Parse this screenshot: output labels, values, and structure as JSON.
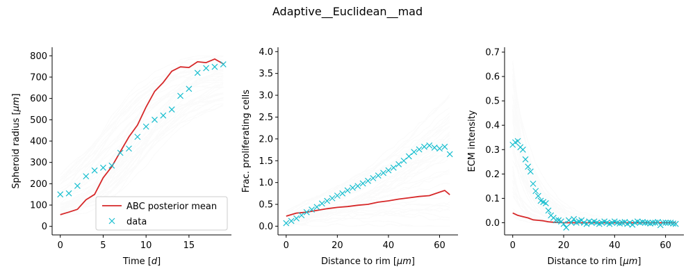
{
  "suptitle": "Adaptive__Euclidean__mad",
  "colors": {
    "mean": "#d62728",
    "data": "#17becf",
    "background": "#cccccc",
    "spine": "#000000"
  },
  "chart_data": [
    {
      "type": "line",
      "xlabel": "Time [$d$]",
      "ylabel": "Spheroid radius [$\\mu m$]",
      "xlim": [
        -0.95,
        19.95
      ],
      "ylim": [
        -40,
        840
      ],
      "xticks": [
        0,
        5,
        10,
        15
      ],
      "yticks": [
        0,
        100,
        200,
        300,
        400,
        500,
        600,
        700,
        800
      ],
      "legend": {
        "placement": "lower-right",
        "entries": [
          "ABC posterior mean",
          "data"
        ]
      },
      "series": [
        {
          "name": "ABC posterior mean",
          "style": "line",
          "x": [
            0,
            1,
            2,
            3,
            4,
            5,
            6,
            7,
            8,
            9,
            10,
            11,
            12,
            13,
            14,
            15,
            16,
            17,
            18,
            19
          ],
          "y": [
            55,
            67,
            80,
            125,
            150,
            228,
            280,
            350,
            420,
            475,
            560,
            633,
            675,
            728,
            748,
            745,
            772,
            768,
            785,
            762
          ]
        },
        {
          "name": "data",
          "style": "marker-x",
          "x": [
            0,
            1,
            2,
            3,
            4,
            5,
            6,
            7,
            8,
            9,
            10,
            11,
            12,
            13,
            14,
            15,
            16,
            17,
            18,
            19
          ],
          "y": [
            150,
            155,
            190,
            235,
            262,
            275,
            285,
            345,
            365,
            420,
            468,
            500,
            520,
            548,
            612,
            645,
            720,
            742,
            748,
            760
          ]
        }
      ]
    },
    {
      "type": "line",
      "xlabel": "Distance to rim [$\\mu m$]",
      "ylabel": "Frac. proliferating cells",
      "xlim": [
        -3.2,
        67.2
      ],
      "ylim": [
        -0.2,
        4.1
      ],
      "xticks": [
        0,
        20,
        40,
        60
      ],
      "yticks": [
        0.0,
        0.5,
        1.0,
        1.5,
        2.0,
        2.5,
        3.0,
        3.5,
        4.0
      ],
      "series": [
        {
          "name": "ABC posterior mean",
          "style": "line",
          "x": [
            0,
            4,
            8,
            12,
            16,
            20,
            24,
            28,
            32,
            36,
            40,
            44,
            48,
            52,
            56,
            60,
            62,
            64
          ],
          "y": [
            0.23,
            0.3,
            0.32,
            0.36,
            0.4,
            0.43,
            0.45,
            0.48,
            0.5,
            0.55,
            0.58,
            0.62,
            0.65,
            0.68,
            0.7,
            0.78,
            0.82,
            0.72
          ]
        },
        {
          "name": "data",
          "style": "marker-x",
          "x": [
            0,
            2,
            4,
            6,
            8,
            10,
            12,
            14,
            16,
            18,
            20,
            22,
            24,
            26,
            28,
            30,
            32,
            34,
            36,
            38,
            40,
            42,
            44,
            46,
            48,
            50,
            52,
            54,
            56,
            58,
            60,
            62,
            64
          ],
          "y": [
            0.07,
            0.12,
            0.18,
            0.25,
            0.32,
            0.38,
            0.44,
            0.52,
            0.58,
            0.64,
            0.7,
            0.75,
            0.82,
            0.88,
            0.92,
            0.98,
            1.04,
            1.1,
            1.16,
            1.22,
            1.28,
            1.34,
            1.42,
            1.5,
            1.6,
            1.7,
            1.76,
            1.82,
            1.85,
            1.8,
            1.78,
            1.82,
            1.65
          ]
        }
      ]
    },
    {
      "type": "line",
      "xlabel": "Distance to rim [$\\mu m$]",
      "ylabel": "ECM intensity",
      "xlim": [
        -3.2,
        67.2
      ],
      "ylim": [
        -0.05,
        0.72
      ],
      "xticks": [
        0,
        20,
        40,
        60
      ],
      "yticks": [
        0.0,
        0.1,
        0.2,
        0.3,
        0.4,
        0.5,
        0.6,
        0.7
      ],
      "series": [
        {
          "name": "ABC posterior mean",
          "style": "line",
          "x": [
            0,
            2,
            4,
            6,
            8,
            10,
            12,
            14,
            16,
            18,
            20,
            30,
            40,
            50,
            60,
            64
          ],
          "y": [
            0.04,
            0.03,
            0.025,
            0.02,
            0.012,
            0.01,
            0.008,
            0.004,
            0.002,
            0.001,
            0.0,
            0.0,
            0.0,
            0.0,
            0.0,
            0.0
          ]
        },
        {
          "name": "data",
          "style": "marker-x",
          "x": [
            0,
            1,
            2,
            3,
            4,
            5,
            6,
            7,
            8,
            9,
            10,
            11,
            12,
            13,
            14,
            15,
            16,
            17,
            18,
            19,
            20,
            21,
            22,
            23,
            24,
            25,
            26,
            27,
            28,
            29,
            30,
            31,
            32,
            33,
            34,
            35,
            36,
            37,
            38,
            39,
            40,
            41,
            42,
            43,
            44,
            45,
            46,
            47,
            48,
            49,
            50,
            51,
            52,
            53,
            54,
            55,
            56,
            57,
            58,
            59,
            60,
            61,
            62,
            63,
            64
          ],
          "y": [
            0.32,
            0.33,
            0.335,
            0.31,
            0.3,
            0.26,
            0.23,
            0.21,
            0.16,
            0.13,
            0.11,
            0.09,
            0.085,
            0.08,
            0.05,
            0.03,
            0.02,
            0.01,
            0.01,
            0.005,
            -0.005,
            -0.02,
            0.01,
            0.0,
            0.015,
            0.0,
            0.005,
            0.01,
            0.0,
            -0.005,
            0.005,
            0.0,
            0.005,
            0.0,
            -0.005,
            0.0,
            0.005,
            0.0,
            -0.005,
            0.0,
            0.005,
            0.0,
            -0.003,
            0.0,
            0.003,
            -0.005,
            0.0,
            -0.008,
            0.0,
            0.005,
            0.0,
            0.003,
            0.0,
            0.0,
            -0.003,
            0.0,
            0.0,
            0.003,
            -0.01,
            0.0,
            0.0,
            0.0,
            0.0,
            -0.003,
            -0.005
          ]
        }
      ]
    }
  ]
}
